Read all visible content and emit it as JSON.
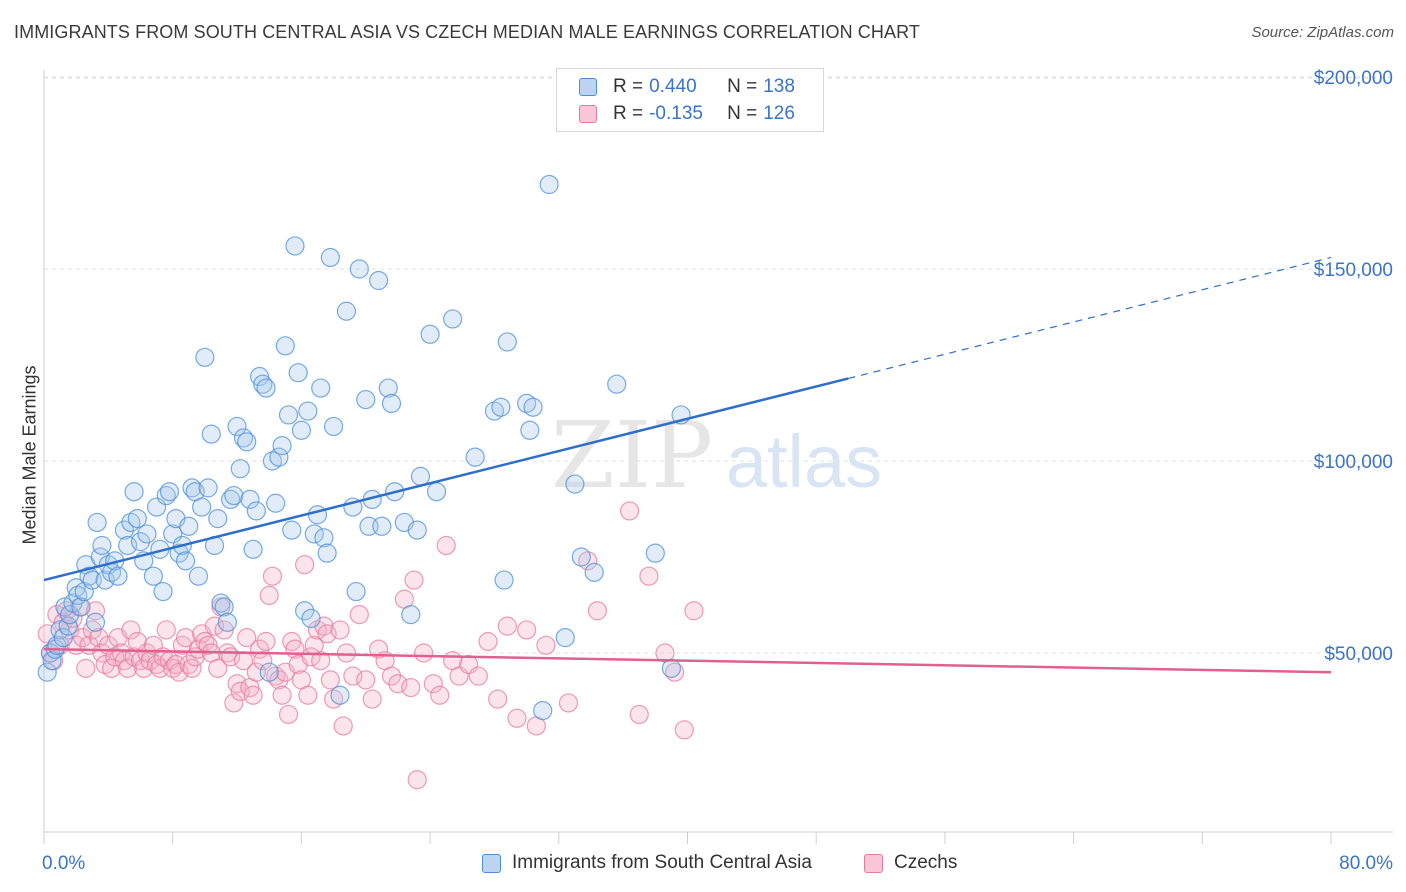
{
  "title": "IMMIGRANTS FROM SOUTH CENTRAL ASIA VS CZECH MEDIAN MALE EARNINGS CORRELATION CHART",
  "source": "Source: ZipAtlas.com",
  "watermark": {
    "zip": "ZIP",
    "atlas": "atlas"
  },
  "legend_top": [
    {
      "r_label": "R =",
      "r_value": "0.440",
      "n_label": "N =",
      "n_value": "138",
      "color": "#4a90d9"
    },
    {
      "r_label": "R =",
      "r_value": "-0.135",
      "n_label": "N =",
      "n_value": "126",
      "color": "#e87aa0"
    }
  ],
  "legend_bottom": [
    {
      "label": "Immigrants from South Central Asia",
      "color": "#4a90d9"
    },
    {
      "label": "Czechs",
      "color": "#e87aa0"
    }
  ],
  "chart_data": {
    "type": "scatter",
    "ylabel": "Median Male Earnings",
    "x_tick_labels": [
      "0.0%",
      "80.0%"
    ],
    "y_tick_labels": [
      "$50,000",
      "$100,000",
      "$150,000",
      "$200,000"
    ],
    "xlim": [
      0,
      80
    ],
    "ylim": [
      0,
      205000
    ],
    "grid": true,
    "legend_position": "top-center",
    "series": [
      {
        "name": "Immigrants from South Central Asia",
        "color": "#4a90d9",
        "trend": {
          "x0": 0,
          "y0": 69000,
          "x1": 50,
          "y1": 121500,
          "dash_to_x": 80,
          "dash_to_y": 153000
        },
        "points": [
          [
            0.2,
            45000
          ],
          [
            0.4,
            50000
          ],
          [
            0.5,
            48000
          ],
          [
            0.7,
            51000
          ],
          [
            0.8,
            52000
          ],
          [
            1.0,
            56000
          ],
          [
            1.2,
            54000
          ],
          [
            1.3,
            62000
          ],
          [
            1.5,
            57000
          ],
          [
            1.6,
            60000
          ],
          [
            1.8,
            63000
          ],
          [
            2.0,
            67000
          ],
          [
            2.1,
            65000
          ],
          [
            2.3,
            62000
          ],
          [
            2.5,
            66000
          ],
          [
            2.6,
            73000
          ],
          [
            2.8,
            70000
          ],
          [
            3.0,
            69000
          ],
          [
            3.2,
            58000
          ],
          [
            3.3,
            84000
          ],
          [
            3.5,
            75000
          ],
          [
            3.6,
            78000
          ],
          [
            3.8,
            69000
          ],
          [
            4.0,
            73000
          ],
          [
            4.2,
            71000
          ],
          [
            4.4,
            74000
          ],
          [
            4.6,
            70000
          ],
          [
            5.0,
            82000
          ],
          [
            5.2,
            78000
          ],
          [
            5.4,
            84000
          ],
          [
            5.6,
            92000
          ],
          [
            5.8,
            85000
          ],
          [
            6.0,
            79000
          ],
          [
            6.2,
            74000
          ],
          [
            6.4,
            81000
          ],
          [
            6.8,
            70000
          ],
          [
            7.0,
            88000
          ],
          [
            7.2,
            77000
          ],
          [
            7.4,
            66000
          ],
          [
            7.6,
            91000
          ],
          [
            7.8,
            92000
          ],
          [
            8.0,
            81000
          ],
          [
            8.2,
            85000
          ],
          [
            8.4,
            76000
          ],
          [
            8.6,
            78000
          ],
          [
            8.8,
            74000
          ],
          [
            9.0,
            83000
          ],
          [
            9.2,
            93000
          ],
          [
            9.4,
            92000
          ],
          [
            9.6,
            70000
          ],
          [
            9.8,
            88000
          ],
          [
            10.0,
            127000
          ],
          [
            10.2,
            93000
          ],
          [
            10.4,
            107000
          ],
          [
            10.6,
            78000
          ],
          [
            10.8,
            85000
          ],
          [
            11.0,
            63000
          ],
          [
            11.2,
            62000
          ],
          [
            11.4,
            58000
          ],
          [
            11.6,
            90000
          ],
          [
            11.8,
            91000
          ],
          [
            12.0,
            109000
          ],
          [
            12.2,
            98000
          ],
          [
            12.4,
            106000
          ],
          [
            12.6,
            105000
          ],
          [
            12.8,
            90000
          ],
          [
            13.0,
            77000
          ],
          [
            13.2,
            87000
          ],
          [
            13.4,
            122000
          ],
          [
            13.6,
            120000
          ],
          [
            13.8,
            119000
          ],
          [
            14.0,
            45000
          ],
          [
            14.2,
            100000
          ],
          [
            14.4,
            89000
          ],
          [
            14.6,
            101000
          ],
          [
            14.8,
            104000
          ],
          [
            15.0,
            130000
          ],
          [
            15.2,
            112000
          ],
          [
            15.4,
            82000
          ],
          [
            15.6,
            156000
          ],
          [
            15.8,
            123000
          ],
          [
            16.0,
            108000
          ],
          [
            16.2,
            61000
          ],
          [
            16.4,
            113000
          ],
          [
            16.6,
            59000
          ],
          [
            16.8,
            81000
          ],
          [
            17.0,
            86000
          ],
          [
            17.2,
            119000
          ],
          [
            17.4,
            80000
          ],
          [
            17.6,
            76000
          ],
          [
            17.8,
            153000
          ],
          [
            18.0,
            109000
          ],
          [
            18.4,
            39000
          ],
          [
            18.8,
            139000
          ],
          [
            19.2,
            88000
          ],
          [
            19.4,
            66000
          ],
          [
            19.6,
            150000
          ],
          [
            20.0,
            116000
          ],
          [
            20.2,
            83000
          ],
          [
            20.4,
            90000
          ],
          [
            20.8,
            147000
          ],
          [
            21.0,
            83000
          ],
          [
            21.4,
            119000
          ],
          [
            21.6,
            115000
          ],
          [
            21.8,
            92000
          ],
          [
            22.4,
            84000
          ],
          [
            22.8,
            60000
          ],
          [
            23.2,
            82000
          ],
          [
            23.4,
            96000
          ],
          [
            24.0,
            133000
          ],
          [
            24.4,
            92000
          ],
          [
            25.4,
            137000
          ],
          [
            26.8,
            101000
          ],
          [
            28.0,
            113000
          ],
          [
            28.4,
            114000
          ],
          [
            28.6,
            69000
          ],
          [
            28.8,
            131000
          ],
          [
            30.0,
            115000
          ],
          [
            30.2,
            108000
          ],
          [
            30.4,
            114000
          ],
          [
            31.0,
            35000
          ],
          [
            31.4,
            172000
          ],
          [
            32.4,
            54000
          ],
          [
            33.0,
            94000
          ],
          [
            33.4,
            75000
          ],
          [
            34.2,
            71000
          ],
          [
            35.6,
            120000
          ],
          [
            38.0,
            76000
          ],
          [
            39.0,
            46000
          ],
          [
            39.6,
            112000
          ]
        ]
      },
      {
        "name": "Czechs",
        "color": "#e87aa0",
        "trend": {
          "x0": 0,
          "y0": 51000,
          "x1": 80,
          "y1": 45000
        },
        "points": [
          [
            0.2,
            55000
          ],
          [
            0.4,
            50000
          ],
          [
            0.6,
            48000
          ],
          [
            0.8,
            60000
          ],
          [
            1.0,
            52000
          ],
          [
            1.2,
            58000
          ],
          [
            1.4,
            61000
          ],
          [
            1.6,
            56000
          ],
          [
            1.8,
            59000
          ],
          [
            2.0,
            52000
          ],
          [
            2.2,
            62000
          ],
          [
            2.4,
            54000
          ],
          [
            2.6,
            46000
          ],
          [
            2.8,
            52000
          ],
          [
            3.0,
            56000
          ],
          [
            3.2,
            61000
          ],
          [
            3.4,
            54000
          ],
          [
            3.6,
            50000
          ],
          [
            3.8,
            47000
          ],
          [
            4.0,
            52000
          ],
          [
            4.2,
            46000
          ],
          [
            4.4,
            49000
          ],
          [
            4.6,
            54000
          ],
          [
            4.8,
            50000
          ],
          [
            5.0,
            48000
          ],
          [
            5.2,
            46000
          ],
          [
            5.4,
            56000
          ],
          [
            5.6,
            49000
          ],
          [
            5.8,
            53000
          ],
          [
            6.0,
            48000
          ],
          [
            6.2,
            46000
          ],
          [
            6.4,
            50000
          ],
          [
            6.6,
            48000
          ],
          [
            6.8,
            52000
          ],
          [
            7.0,
            47000
          ],
          [
            7.2,
            46000
          ],
          [
            7.4,
            49000
          ],
          [
            7.6,
            56000
          ],
          [
            7.8,
            48000
          ],
          [
            8.0,
            46000
          ],
          [
            8.2,
            47000
          ],
          [
            8.4,
            45000
          ],
          [
            8.6,
            52000
          ],
          [
            8.8,
            54000
          ],
          [
            9.0,
            47000
          ],
          [
            9.2,
            46000
          ],
          [
            9.4,
            49000
          ],
          [
            9.6,
            51000
          ],
          [
            9.8,
            55000
          ],
          [
            10.0,
            53000
          ],
          [
            10.2,
            52000
          ],
          [
            10.4,
            50000
          ],
          [
            10.6,
            57000
          ],
          [
            10.8,
            46000
          ],
          [
            11.0,
            62000
          ],
          [
            11.2,
            56000
          ],
          [
            11.4,
            50000
          ],
          [
            11.6,
            49000
          ],
          [
            11.8,
            37000
          ],
          [
            12.0,
            42000
          ],
          [
            12.2,
            40000
          ],
          [
            12.4,
            48000
          ],
          [
            12.6,
            54000
          ],
          [
            12.8,
            41000
          ],
          [
            13.0,
            39000
          ],
          [
            13.2,
            45000
          ],
          [
            13.4,
            51000
          ],
          [
            13.6,
            48000
          ],
          [
            13.8,
            53000
          ],
          [
            14.0,
            65000
          ],
          [
            14.2,
            70000
          ],
          [
            14.4,
            44000
          ],
          [
            14.6,
            43000
          ],
          [
            14.8,
            39000
          ],
          [
            15.0,
            45000
          ],
          [
            15.2,
            34000
          ],
          [
            15.4,
            53000
          ],
          [
            15.6,
            51000
          ],
          [
            15.8,
            47000
          ],
          [
            16.0,
            43000
          ],
          [
            16.2,
            73000
          ],
          [
            16.4,
            39000
          ],
          [
            16.6,
            49000
          ],
          [
            16.8,
            52000
          ],
          [
            17.0,
            56000
          ],
          [
            17.2,
            48000
          ],
          [
            17.4,
            57000
          ],
          [
            17.6,
            55000
          ],
          [
            17.8,
            43000
          ],
          [
            18.0,
            38000
          ],
          [
            18.4,
            56000
          ],
          [
            18.6,
            31000
          ],
          [
            18.8,
            50000
          ],
          [
            19.2,
            44000
          ],
          [
            19.6,
            60000
          ],
          [
            20.0,
            43000
          ],
          [
            20.4,
            38000
          ],
          [
            20.8,
            51000
          ],
          [
            21.2,
            48000
          ],
          [
            21.6,
            44000
          ],
          [
            22.0,
            42000
          ],
          [
            22.4,
            64000
          ],
          [
            22.8,
            41000
          ],
          [
            23.0,
            69000
          ],
          [
            23.2,
            17000
          ],
          [
            23.6,
            50000
          ],
          [
            24.2,
            42000
          ],
          [
            24.6,
            39000
          ],
          [
            25.0,
            78000
          ],
          [
            25.4,
            48000
          ],
          [
            25.8,
            44000
          ],
          [
            26.4,
            47000
          ],
          [
            27.0,
            44000
          ],
          [
            27.6,
            53000
          ],
          [
            28.2,
            38000
          ],
          [
            28.8,
            57000
          ],
          [
            29.4,
            33000
          ],
          [
            30.0,
            56000
          ],
          [
            30.6,
            31000
          ],
          [
            31.2,
            52000
          ],
          [
            32.6,
            37000
          ],
          [
            33.8,
            74000
          ],
          [
            34.4,
            61000
          ],
          [
            36.4,
            87000
          ],
          [
            37.0,
            34000
          ],
          [
            37.6,
            70000
          ],
          [
            38.6,
            50000
          ],
          [
            39.2,
            45000
          ],
          [
            39.8,
            30000
          ],
          [
            40.4,
            61000
          ]
        ]
      }
    ]
  }
}
